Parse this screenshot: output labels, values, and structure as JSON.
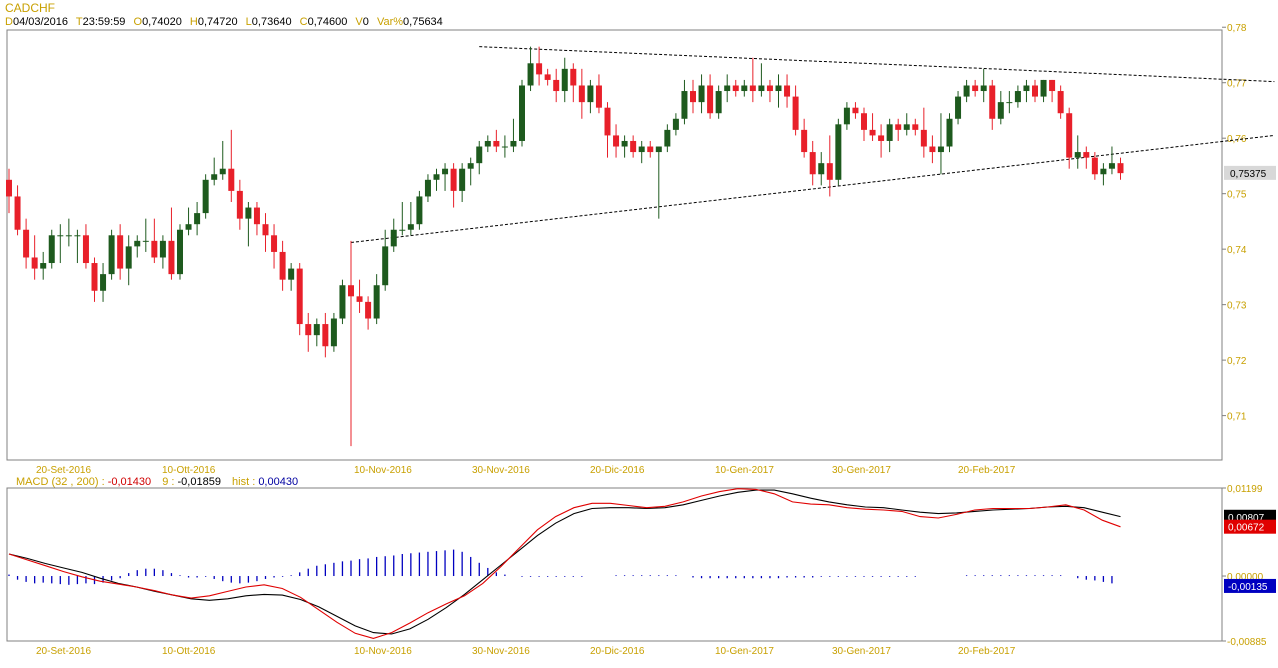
{
  "header": {
    "symbol": "CADCHF",
    "d_label": "D",
    "date": "04/03/2016",
    "t_label": "T",
    "time": "23:59:59",
    "o_label": "O",
    "open": "0,74020",
    "h_label": "H",
    "high": "0,74720",
    "l_label": "L",
    "low": "0,73640",
    "c_label": "C",
    "close": "0,74600",
    "v_label": "V",
    "volume": "0",
    "var_label": "Var%",
    "var": "0,75634"
  },
  "macd_header": {
    "label": "MACD",
    "params": "(32 , 200) :",
    "macd_value": "-0,01430",
    "signal_label": "9 :",
    "signal_value": "-0,01859",
    "hist_label": "hist :",
    "hist_value": "0,00430"
  },
  "colors": {
    "up_candle": "#1e5a1e",
    "down_candle": "#e8202a",
    "macd_line": "#000000",
    "signal_line": "#e00000",
    "histogram": "#0000c0",
    "axis_text": "#c8a000"
  },
  "chart_data": [
    {
      "type": "candlestick",
      "title": "CADCHF",
      "ylim": [
        0.702,
        0.7795
      ],
      "y_ticks": [
        "0,78",
        "0,77",
        "0,76",
        "0,75",
        "0,74",
        "0,73",
        "0,72",
        "0,71"
      ],
      "x_ticks": [
        "20-Set-2016",
        "10-Ott-2016",
        "10-Nov-2016",
        "30-Nov-2016",
        "20-Dic-2016",
        "10-Gen-2017",
        "30-Gen-2017",
        "20-Feb-2017"
      ],
      "last_price_label": "0,75375",
      "candles": [
        [
          0.7525,
          0.7545,
          0.7465,
          0.7495
        ],
        [
          0.7495,
          0.7515,
          0.7425,
          0.7435
        ],
        [
          0.7435,
          0.7455,
          0.7365,
          0.7385
        ],
        [
          0.7385,
          0.7425,
          0.7345,
          0.7365
        ],
        [
          0.7365,
          0.7395,
          0.7345,
          0.7375
        ],
        [
          0.7375,
          0.7435,
          0.7365,
          0.7425
        ],
        [
          0.7425,
          0.7445,
          0.7375,
          0.7425
        ],
        [
          0.7425,
          0.7455,
          0.7405,
          0.7425
        ],
        [
          0.7425,
          0.7435,
          0.7375,
          0.7425
        ],
        [
          0.7425,
          0.7445,
          0.7365,
          0.7375
        ],
        [
          0.7375,
          0.7385,
          0.7305,
          0.7325
        ],
        [
          0.7325,
          0.7375,
          0.7305,
          0.7355
        ],
        [
          0.7355,
          0.7435,
          0.7345,
          0.7425
        ],
        [
          0.7425,
          0.7445,
          0.7345,
          0.7365
        ],
        [
          0.7365,
          0.7425,
          0.7335,
          0.7405
        ],
        [
          0.7405,
          0.7425,
          0.7385,
          0.7415
        ],
        [
          0.7415,
          0.7455,
          0.7395,
          0.7415
        ],
        [
          0.7415,
          0.7455,
          0.7375,
          0.7385
        ],
        [
          0.7385,
          0.7425,
          0.7365,
          0.7415
        ],
        [
          0.7415,
          0.7475,
          0.7345,
          0.7355
        ],
        [
          0.7355,
          0.7445,
          0.7345,
          0.7435
        ],
        [
          0.7435,
          0.7475,
          0.7425,
          0.7445
        ],
        [
          0.7445,
          0.7485,
          0.7425,
          0.7465
        ],
        [
          0.7465,
          0.7535,
          0.7455,
          0.7525
        ],
        [
          0.7525,
          0.7565,
          0.7515,
          0.7535
        ],
        [
          0.7535,
          0.7595,
          0.7525,
          0.7545
        ],
        [
          0.7545,
          0.7615,
          0.7485,
          0.7505
        ],
        [
          0.7505,
          0.7525,
          0.7435,
          0.7455
        ],
        [
          0.7455,
          0.7485,
          0.7405,
          0.7475
        ],
        [
          0.7475,
          0.7485,
          0.7425,
          0.7445
        ],
        [
          0.7445,
          0.7465,
          0.7395,
          0.7425
        ],
        [
          0.7425,
          0.7445,
          0.7365,
          0.7395
        ],
        [
          0.7395,
          0.7415,
          0.7325,
          0.7345
        ],
        [
          0.7345,
          0.7375,
          0.7325,
          0.7365
        ],
        [
          0.7365,
          0.7375,
          0.7245,
          0.7265
        ],
        [
          0.7265,
          0.7285,
          0.7215,
          0.7245
        ],
        [
          0.7245,
          0.7275,
          0.7225,
          0.7265
        ],
        [
          0.7265,
          0.7285,
          0.7205,
          0.7225
        ],
        [
          0.7225,
          0.7285,
          0.7215,
          0.7275
        ],
        [
          0.7275,
          0.7345,
          0.7265,
          0.7335
        ],
        [
          0.7335,
          0.7415,
          0.7045,
          0.7315
        ],
        [
          0.7315,
          0.7345,
          0.7285,
          0.7305
        ],
        [
          0.7305,
          0.7315,
          0.7255,
          0.7275
        ],
        [
          0.7275,
          0.7355,
          0.7265,
          0.7335
        ],
        [
          0.7335,
          0.7435,
          0.7325,
          0.7405
        ],
        [
          0.7405,
          0.7455,
          0.7395,
          0.7435
        ],
        [
          0.7435,
          0.7485,
          0.7425,
          0.7435
        ],
        [
          0.7435,
          0.7485,
          0.7425,
          0.7445
        ],
        [
          0.7445,
          0.7505,
          0.7435,
          0.7495
        ],
        [
          0.7495,
          0.7535,
          0.7485,
          0.7525
        ],
        [
          0.7525,
          0.7545,
          0.7505,
          0.7535
        ],
        [
          0.7535,
          0.7555,
          0.7505,
          0.7545
        ],
        [
          0.7545,
          0.7555,
          0.7475,
          0.7505
        ],
        [
          0.7505,
          0.7555,
          0.7485,
          0.7545
        ],
        [
          0.7545,
          0.7565,
          0.7515,
          0.7555
        ],
        [
          0.7555,
          0.7595,
          0.7535,
          0.7585
        ],
        [
          0.7585,
          0.7605,
          0.7575,
          0.7595
        ],
        [
          0.7595,
          0.7615,
          0.7575,
          0.7585
        ],
        [
          0.7585,
          0.7605,
          0.7565,
          0.7585
        ],
        [
          0.7585,
          0.7635,
          0.7575,
          0.7595
        ],
        [
          0.7595,
          0.7705,
          0.7585,
          0.7695
        ],
        [
          0.7695,
          0.7765,
          0.7685,
          0.7735
        ],
        [
          0.7735,
          0.7765,
          0.7695,
          0.7715
        ],
        [
          0.7715,
          0.7725,
          0.7695,
          0.7705
        ],
        [
          0.7705,
          0.7725,
          0.7665,
          0.7685
        ],
        [
          0.7685,
          0.7745,
          0.7665,
          0.7725
        ],
        [
          0.7725,
          0.7735,
          0.7665,
          0.7695
        ],
        [
          0.7695,
          0.7725,
          0.7635,
          0.7665
        ],
        [
          0.7665,
          0.7705,
          0.7645,
          0.7695
        ],
        [
          0.7695,
          0.7715,
          0.7645,
          0.7655
        ],
        [
          0.7655,
          0.7665,
          0.7565,
          0.7605
        ],
        [
          0.7605,
          0.7625,
          0.7565,
          0.7585
        ],
        [
          0.7585,
          0.7605,
          0.7565,
          0.7595
        ],
        [
          0.7595,
          0.7605,
          0.7565,
          0.7575
        ],
        [
          0.7575,
          0.7595,
          0.7555,
          0.7585
        ],
        [
          0.7585,
          0.7595,
          0.7565,
          0.7575
        ],
        [
          0.7575,
          0.7585,
          0.7455,
          0.7585
        ],
        [
          0.7585,
          0.7625,
          0.7575,
          0.7615
        ],
        [
          0.7615,
          0.7645,
          0.7605,
          0.7635
        ],
        [
          0.7635,
          0.7705,
          0.7625,
          0.7685
        ],
        [
          0.7685,
          0.7705,
          0.7645,
          0.7665
        ],
        [
          0.7665,
          0.7715,
          0.7645,
          0.7695
        ],
        [
          0.7695,
          0.7715,
          0.7635,
          0.7645
        ],
        [
          0.7645,
          0.7695,
          0.7635,
          0.7685
        ],
        [
          0.7685,
          0.7715,
          0.7665,
          0.7695
        ],
        [
          0.7695,
          0.7705,
          0.7675,
          0.7685
        ],
        [
          0.7685,
          0.7705,
          0.7675,
          0.7695
        ],
        [
          0.7695,
          0.7745,
          0.7665,
          0.7685
        ],
        [
          0.7685,
          0.7735,
          0.7675,
          0.7695
        ],
        [
          0.7695,
          0.7705,
          0.7665,
          0.7685
        ],
        [
          0.7685,
          0.7715,
          0.7655,
          0.7695
        ],
        [
          0.7695,
          0.7715,
          0.7655,
          0.7675
        ],
        [
          0.7675,
          0.7695,
          0.7605,
          0.7615
        ],
        [
          0.7615,
          0.7635,
          0.7565,
          0.7575
        ],
        [
          0.7575,
          0.7595,
          0.7515,
          0.7535
        ],
        [
          0.7535,
          0.7575,
          0.7515,
          0.7555
        ],
        [
          0.7555,
          0.7605,
          0.7495,
          0.7525
        ],
        [
          0.7525,
          0.7635,
          0.7515,
          0.7625
        ],
        [
          0.7625,
          0.7665,
          0.7615,
          0.7655
        ],
        [
          0.7655,
          0.7665,
          0.7635,
          0.7645
        ],
        [
          0.7645,
          0.7655,
          0.7595,
          0.7615
        ],
        [
          0.7615,
          0.7645,
          0.7595,
          0.7605
        ],
        [
          0.7605,
          0.7625,
          0.7565,
          0.7595
        ],
        [
          0.7595,
          0.7635,
          0.7575,
          0.7625
        ],
        [
          0.7625,
          0.7635,
          0.7595,
          0.7615
        ],
        [
          0.7615,
          0.7645,
          0.7605,
          0.7625
        ],
        [
          0.7625,
          0.7635,
          0.7605,
          0.7615
        ],
        [
          0.7615,
          0.7655,
          0.7565,
          0.7585
        ],
        [
          0.7585,
          0.7605,
          0.7555,
          0.7575
        ],
        [
          0.7575,
          0.7645,
          0.7535,
          0.7585
        ],
        [
          0.7585,
          0.7645,
          0.7575,
          0.7635
        ],
        [
          0.7635,
          0.7685,
          0.7625,
          0.7675
        ],
        [
          0.7675,
          0.7705,
          0.7665,
          0.7695
        ],
        [
          0.7695,
          0.7705,
          0.7675,
          0.7685
        ],
        [
          0.7685,
          0.7725,
          0.7665,
          0.7695
        ],
        [
          0.7695,
          0.7705,
          0.7615,
          0.7635
        ],
        [
          0.7635,
          0.7685,
          0.7625,
          0.7665
        ],
        [
          0.7665,
          0.7685,
          0.7645,
          0.7665
        ],
        [
          0.7665,
          0.7695,
          0.7655,
          0.7685
        ],
        [
          0.7685,
          0.7705,
          0.7665,
          0.7695
        ],
        [
          0.7695,
          0.7705,
          0.7665,
          0.7675
        ],
        [
          0.7675,
          0.7705,
          0.7665,
          0.7705
        ],
        [
          0.7705,
          0.7705,
          0.7665,
          0.7685
        ],
        [
          0.7685,
          0.7695,
          0.7635,
          0.7645
        ],
        [
          0.7645,
          0.7655,
          0.7545,
          0.7565
        ],
        [
          0.7565,
          0.7605,
          0.7545,
          0.7575
        ],
        [
          0.7575,
          0.7585,
          0.7545,
          0.7565
        ],
        [
          0.7565,
          0.7575,
          0.7525,
          0.7535
        ],
        [
          0.7535,
          0.7555,
          0.7515,
          0.7545
        ],
        [
          0.7545,
          0.7585,
          0.7535,
          0.7555
        ],
        [
          0.7555,
          0.7565,
          0.7525,
          0.7537
        ]
      ],
      "trendlines": [
        {
          "style": "dashed",
          "points": [
            [
              55,
              0.7765
            ],
            [
              115,
              0.7725
            ],
            [
              148,
              0.7702
            ]
          ]
        },
        {
          "style": "dashed",
          "points": [
            [
              40,
              0.7412
            ],
            [
              148,
              0.7605
            ]
          ]
        }
      ]
    },
    {
      "type": "line",
      "title": "MACD",
      "ylim": [
        -0.00885,
        0.01199
      ],
      "y_ticks": [
        "0,01199",
        "0,00000",
        "-0,00885"
      ],
      "x_ticks": [
        "20-Set-2016",
        "10-Ott-2016",
        "10-Nov-2016",
        "30-Nov-2016",
        "20-Dic-2016",
        "10-Gen-2017",
        "30-Gen-2017",
        "20-Feb-2017"
      ],
      "value_labels": [
        "0,00807",
        "0,00672",
        "-0,00135"
      ],
      "series": [
        {
          "name": "MACD",
          "values": [
            0.003,
            0.0024,
            0.0017,
            0.0011,
            0.0005,
            -0.0003,
            -0.001,
            -0.0015,
            -0.0021,
            -0.0026,
            -0.0031,
            -0.0033,
            -0.0031,
            -0.0027,
            -0.0025,
            -0.0026,
            -0.0032,
            -0.0042,
            -0.0055,
            -0.0068,
            -0.0077,
            -0.0079,
            -0.0072,
            -0.0059,
            -0.0043,
            -0.0025,
            -0.0005,
            0.0015,
            0.0035,
            0.0055,
            0.0072,
            0.0085,
            0.0092,
            0.0093,
            0.0093,
            0.0092,
            0.0093,
            0.0097,
            0.0103,
            0.0109,
            0.0114,
            0.0117,
            0.0117,
            0.0112,
            0.0106,
            0.0101,
            0.0097,
            0.0094,
            0.0093,
            0.009,
            0.0087,
            0.0085,
            0.0086,
            0.0088,
            0.009,
            0.0091,
            0.0092,
            0.0094,
            0.0095,
            0.0093,
            0.0087,
            0.0081
          ]
        },
        {
          "name": "Signal",
          "values": [
            0.003,
            0.0022,
            0.0014,
            0.0006,
            -0.0001,
            -0.0007,
            -0.0011,
            -0.0015,
            -0.002,
            -0.0026,
            -0.003,
            -0.0027,
            -0.0021,
            -0.0015,
            -0.0012,
            -0.0017,
            -0.0029,
            -0.0046,
            -0.0063,
            -0.0078,
            -0.0085,
            -0.0077,
            -0.0064,
            -0.005,
            -0.0038,
            -0.0027,
            -0.001,
            0.0013,
            0.0038,
            0.0063,
            0.0081,
            0.0093,
            0.0099,
            0.0099,
            0.0096,
            0.0093,
            0.0095,
            0.0101,
            0.0109,
            0.0115,
            0.0119,
            0.0118,
            0.0112,
            0.0101,
            0.0098,
            0.0097,
            0.0093,
            0.0091,
            0.009,
            0.0088,
            0.0081,
            0.0079,
            0.0084,
            0.009,
            0.0092,
            0.0092,
            0.0092,
            0.0094,
            0.0097,
            0.009,
            0.0076,
            0.0067
          ]
        },
        {
          "name": "hist",
          "values": [
            0.0002,
            -0.0005,
            -0.0008,
            -0.001,
            -0.0009,
            -0.001,
            -0.0011,
            -0.0012,
            -0.0011,
            -0.001,
            -0.0011,
            -0.0009,
            -0.0006,
            -0.0003,
            0.0004,
            0.0008,
            0.001,
            0.001,
            0.0008,
            0.0004,
            0.0001,
            -0.0002,
            -0.0002,
            -0.0001,
            -0.0004,
            -0.0007,
            -0.0009,
            -0.001,
            -0.0009,
            -0.0007,
            -0.0004,
            -0.0002,
            -0.0001,
            0.0001,
            0.0005,
            0.001,
            0.0014,
            0.0016,
            0.0018,
            0.002,
            0.0021,
            0.0023,
            0.0024,
            0.0026,
            0.0027,
            0.0028,
            0.003,
            0.0031,
            0.0032,
            0.0033,
            0.0034,
            0.0035,
            0.0036,
            0.0033,
            0.0026,
            0.0018,
            0.0011,
            0.0005,
            0.0002,
            0.0,
            -0.0001,
            -0.0001,
            -0.0001,
            -0.0001,
            -0.0001,
            -0.0001,
            -0.0001,
            -0.0001,
            0.0,
            0.0,
            0.0,
            0.0001,
            0.0001,
            0.0001,
            0.0001,
            0.0001,
            0.0001,
            0.0001,
            0.0001,
            0.0,
            -0.0002,
            -0.0003,
            -0.0003,
            -0.0003,
            -0.0003,
            -0.0003,
            -0.0003,
            -0.0003,
            -0.0003,
            -0.0003,
            -0.0003,
            -0.0002,
            -0.0002,
            -0.0002,
            -0.0002,
            -0.0001,
            -0.0001,
            -0.0001,
            -0.0001,
            -0.0001,
            -0.0001,
            -0.0001,
            -0.0001,
            -0.0001,
            -0.0001,
            -0.0001,
            -0.0001,
            0.0,
            0.0,
            0.0,
            0.0,
            0.0,
            0.0001,
            0.0001,
            0.0001,
            0.0001,
            0.0001,
            0.0001,
            0.0001,
            0.0001,
            0.0001,
            0.0001,
            0.0001,
            0.0001,
            0.0,
            -0.0003,
            -0.0005,
            -0.0006,
            -0.0008,
            -0.001
          ]
        }
      ]
    }
  ]
}
